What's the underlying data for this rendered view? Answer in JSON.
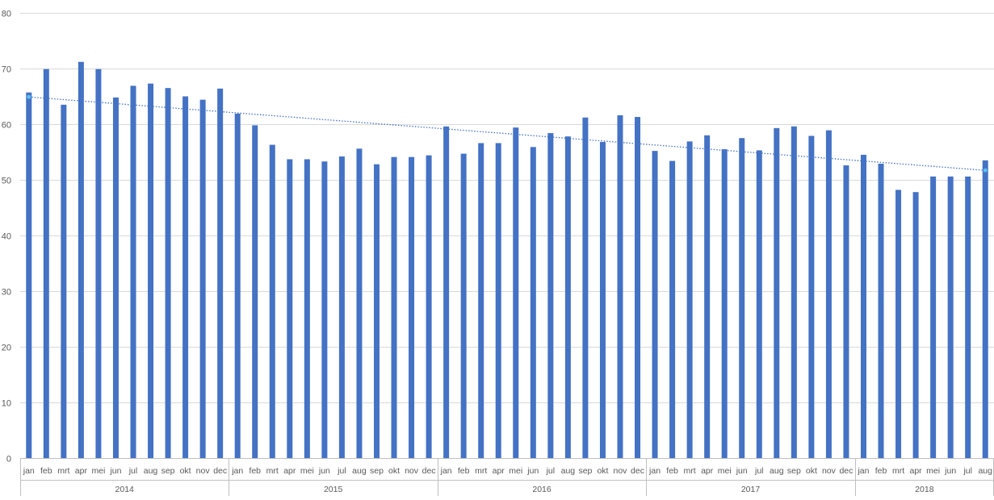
{
  "chart_data": {
    "type": "bar",
    "ylim": [
      0,
      80
    ],
    "yticks": [
      0,
      10,
      20,
      30,
      40,
      50,
      60,
      70,
      80
    ],
    "grid": true,
    "colors": {
      "bar": "#4472C4",
      "trend": "#4472C4",
      "trend_marker": "#5BC0F0",
      "grid": "#D9D9D9",
      "axis_text": "#595959"
    },
    "months": [
      "jan",
      "feb",
      "mrt",
      "apr",
      "mei",
      "jun",
      "jul",
      "aug",
      "sep",
      "okt",
      "nov",
      "dec",
      "jan",
      "feb",
      "mrt",
      "apr",
      "mei",
      "jun",
      "jul",
      "aug",
      "sep",
      "okt",
      "nov",
      "dec",
      "jan",
      "feb",
      "mrt",
      "apr",
      "mei",
      "jun",
      "jul",
      "aug",
      "sep",
      "okt",
      "nov",
      "dec",
      "jan",
      "feb",
      "mrt",
      "apr",
      "mei",
      "jun",
      "jul",
      "aug",
      "sep",
      "okt",
      "nov",
      "dec",
      "jan",
      "feb",
      "mrt",
      "apr",
      "mei",
      "jun",
      "jul",
      "aug"
    ],
    "years": [
      {
        "label": "2014",
        "count": 12
      },
      {
        "label": "2015",
        "count": 12
      },
      {
        "label": "2016",
        "count": 12
      },
      {
        "label": "2017",
        "count": 12
      },
      {
        "label": "2018",
        "count": 8
      }
    ],
    "values": [
      65.7,
      69.9,
      63.5,
      71.2,
      69.9,
      64.8,
      66.9,
      67.3,
      66.5,
      65.0,
      64.4,
      66.4,
      61.9,
      59.8,
      56.3,
      53.7,
      53.7,
      53.3,
      54.2,
      55.6,
      52.8,
      54.1,
      54.1,
      54.4,
      59.6,
      54.7,
      56.6,
      56.6,
      59.4,
      55.9,
      58.4,
      57.8,
      61.2,
      56.8,
      61.6,
      61.3,
      55.2,
      53.4,
      56.9,
      58.0,
      55.5,
      57.5,
      55.3,
      59.3,
      59.6,
      57.9,
      58.9,
      52.6,
      54.5,
      52.9,
      48.2,
      47.8,
      50.6,
      50.6,
      50.6,
      53.5
    ],
    "trendline": {
      "type": "linear",
      "start": 64.9,
      "end": 51.7
    }
  }
}
